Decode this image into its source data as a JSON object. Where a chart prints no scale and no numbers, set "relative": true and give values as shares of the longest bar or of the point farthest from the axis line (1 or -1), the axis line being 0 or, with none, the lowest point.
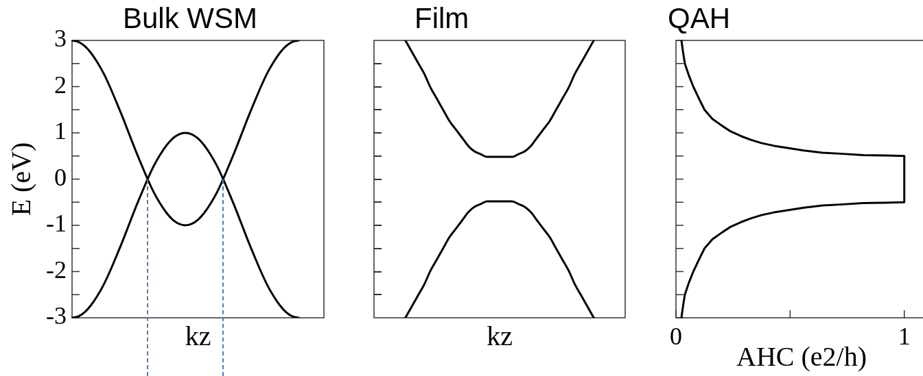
{
  "chart_data": [
    {
      "type": "line",
      "title": "Bulk WSM",
      "xlabel": "kz",
      "ylabel": "E (eV)",
      "categories": [
        null,
        null,
        null,
        null,
        null,
        null,
        null,
        null,
        null,
        null,
        null,
        null,
        null,
        null,
        null,
        null,
        null,
        null,
        null,
        null,
        null,
        null,
        null,
        null,
        null,
        null,
        null,
        null,
        null,
        null,
        null,
        null,
        null,
        null,
        null,
        null,
        null,
        null,
        null,
        null,
        null
      ],
      "series": [
        {
          "color": "#000000",
          "values": [
            3,
            2.97,
            2.88,
            2.73,
            2.53,
            2.29,
            2,
            1.68,
            1.35,
            1,
            0.65,
            0.32,
            0,
            -0.29,
            -0.53,
            -0.73,
            -0.88,
            -0.97,
            -1,
            -0.97,
            -0.88,
            -0.73,
            -0.53,
            -0.29,
            0,
            0.32,
            0.65,
            1,
            1.35,
            1.68,
            2,
            2.29,
            2.53,
            2.73,
            2.88,
            2.97,
            3,
            null,
            null,
            null,
            null
          ]
        },
        {
          "color": "#000000",
          "values": [
            -3,
            -2.97,
            -2.88,
            -2.73,
            -2.53,
            -2.29,
            -2,
            -1.68,
            -1.35,
            -1,
            -0.65,
            -0.32,
            0,
            0.29,
            0.53,
            0.73,
            0.88,
            0.97,
            1,
            0.97,
            0.88,
            0.73,
            0.53,
            0.29,
            0,
            -0.32,
            -0.65,
            -1,
            -1.35,
            -1.68,
            -2,
            -2.29,
            -2.53,
            -2.73,
            -2.88,
            -2.97,
            -3,
            null,
            null,
            null,
            null
          ]
        }
      ],
      "ylim": [
        -3,
        3
      ],
      "yticks": [
        -3,
        {
          "value": -2.5,
          "label": null
        },
        -2,
        {
          "value": -1.5,
          "label": null
        },
        -1,
        {
          "value": -0.5,
          "label": null
        },
        0,
        {
          "value": 0.5,
          "label": null
        },
        1,
        {
          "value": 1.5,
          "label": null
        },
        2,
        {
          "value": 2.5,
          "label": null
        },
        3
      ],
      "tick_labels": "y",
      "marker": "none"
    },
    {
      "type": "line",
      "title": "Film",
      "xlabel": "kz",
      "relative": true,
      "categories": [
        null,
        null,
        null,
        null,
        null,
        null,
        null,
        null,
        null,
        null,
        null,
        null,
        null,
        null,
        null,
        null,
        null,
        null,
        null,
        null,
        null,
        null,
        null,
        null,
        null,
        null,
        null,
        null,
        null,
        null,
        null,
        null,
        null,
        null,
        null,
        null,
        null,
        null,
        null,
        null,
        null
      ],
      "series": [
        {
          "color": "#000000",
          "values": [
            null,
            null,
            null,
            null,
            null,
            1,
            0.96,
            0.92,
            0.88,
            0.83,
            0.79,
            0.75,
            0.71,
            0.68,
            0.65,
            0.62,
            0.6,
            0.59,
            0.58,
            0.58,
            0.58,
            0.58,
            0.58,
            0.59,
            0.6,
            0.62,
            0.65,
            0.68,
            0.71,
            0.75,
            0.79,
            0.83,
            0.88,
            0.92,
            0.96,
            1,
            null,
            null,
            null,
            null,
            null
          ]
        },
        {
          "color": "#000000",
          "values": [
            null,
            null,
            null,
            null,
            null,
            0,
            0.04,
            0.08,
            0.12,
            0.17,
            0.21,
            0.25,
            0.29,
            0.32,
            0.35,
            0.38,
            0.4,
            0.41,
            0.42,
            0.42,
            0.42,
            0.42,
            0.42,
            0.41,
            0.4,
            0.38,
            0.35,
            0.32,
            0.29,
            0.25,
            0.21,
            0.17,
            0.12,
            0.08,
            0.04,
            0,
            null,
            null,
            null,
            null,
            null
          ]
        }
      ],
      "tick_labels": false,
      "marker": "none"
    },
    {
      "type": "line",
      "title": "QAH",
      "xlabel": "AHC (e2/h)",
      "series": [
        {
          "color": "#000000",
          "x": [
            0.024,
            0.031,
            0.039,
            0.056,
            0.076,
            0.1,
            0.125,
            0.16,
            0.203,
            0.24,
            0.285,
            0.328,
            0.374,
            0.43,
            0.493,
            0.56,
            0.642,
            0.72,
            0.82,
            0.92,
            1,
            1,
            0.92,
            0.82,
            0.72,
            0.642,
            0.56,
            0.493,
            0.43,
            0.374,
            0.328,
            0.285,
            0.24,
            0.203,
            0.16,
            0.125,
            0.1,
            0.076,
            0.056,
            0.039,
            0.031,
            0.024
          ],
          "values": [
            3,
            2.75,
            2.5,
            2.25,
            2,
            1.75,
            1.5,
            1.3,
            1.15,
            1.03,
            0.93,
            0.85,
            0.78,
            0.72,
            0.67,
            0.62,
            0.57,
            0.55,
            0.52,
            0.51,
            0.5,
            -0.5,
            -0.51,
            -0.52,
            -0.55,
            -0.57,
            -0.62,
            -0.67,
            -0.72,
            -0.78,
            -0.85,
            -0.93,
            -1.03,
            -1.15,
            -1.3,
            -1.5,
            -1.75,
            -2,
            -2.25,
            -2.5,
            -2.75,
            -3
          ]
        }
      ],
      "xlim": [
        0,
        1.1
      ],
      "xticks": [
        0,
        {
          "value": 0.5,
          "label": null
        },
        1
      ],
      "ylim": [
        -3,
        3
      ],
      "yticks": [
        -3,
        {
          "value": -2.5,
          "label": null
        },
        -2,
        {
          "value": -1.5,
          "label": null
        },
        -1,
        {
          "value": -0.5,
          "label": null
        },
        0,
        {
          "value": 0.5,
          "label": null
        },
        1,
        {
          "value": 1.5,
          "label": null
        },
        2,
        {
          "value": 2.5,
          "label": null
        },
        3
      ],
      "tick_labels": "x",
      "marker": "none"
    }
  ]
}
